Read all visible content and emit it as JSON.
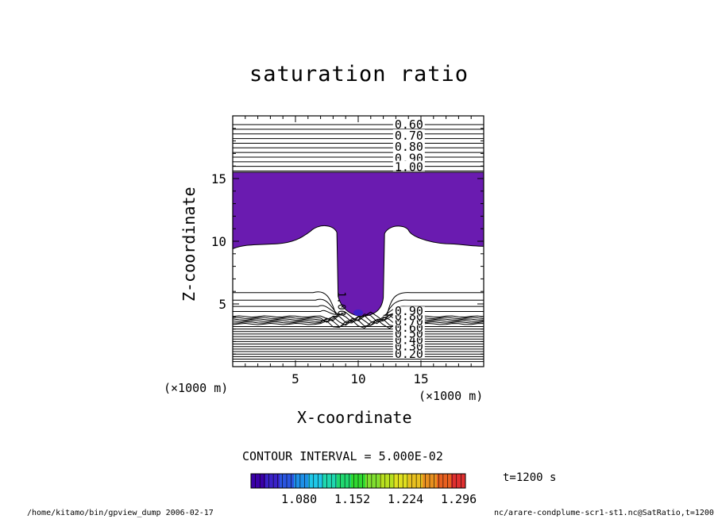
{
  "chart_data": {
    "type": "contour",
    "title": "saturation ratio",
    "xlabel": "X-coordinate",
    "ylabel": "Z-coordinate",
    "x_unit_label": "(×1000 m)",
    "xlim": [
      0,
      20
    ],
    "ylim": [
      0,
      20
    ],
    "x_ticks": [
      "5",
      "10",
      "15"
    ],
    "y_ticks": [
      "5",
      "10",
      "15"
    ],
    "contour_interval_text": "CONTOUR INTERVAL = 5.000E-02",
    "contour_labels_upper": [
      "0.60",
      "0.70",
      "0.80",
      "0.90",
      "1.00"
    ],
    "contour_labels_lower": [
      "0.20",
      "0.30",
      "0.40",
      "0.50",
      "0.60",
      "0.70",
      "0.80",
      "0.90"
    ],
    "plume_label": "1.00",
    "shaded_region": {
      "min_value": 1.0,
      "color": "#6a1bb0"
    },
    "colorbar": {
      "ticks": [
        "1.080",
        "1.152",
        "1.224",
        "1.296"
      ],
      "colors": [
        "#3a00a8",
        "#3a22c8",
        "#2a55e0",
        "#1e90e8",
        "#20c8e8",
        "#20d8b0",
        "#20d870",
        "#30d830",
        "#80e030",
        "#b8e020",
        "#e0e020",
        "#e8c020",
        "#e89020",
        "#e86020",
        "#e03030"
      ]
    },
    "time_label": "t=1200 s"
  },
  "footer": {
    "left": "/home/kitamo/bin/gpview_dump  2006-02-17",
    "right": "nc/arare-condplume-scr1-st1.nc@SatRatio,t=1200"
  }
}
